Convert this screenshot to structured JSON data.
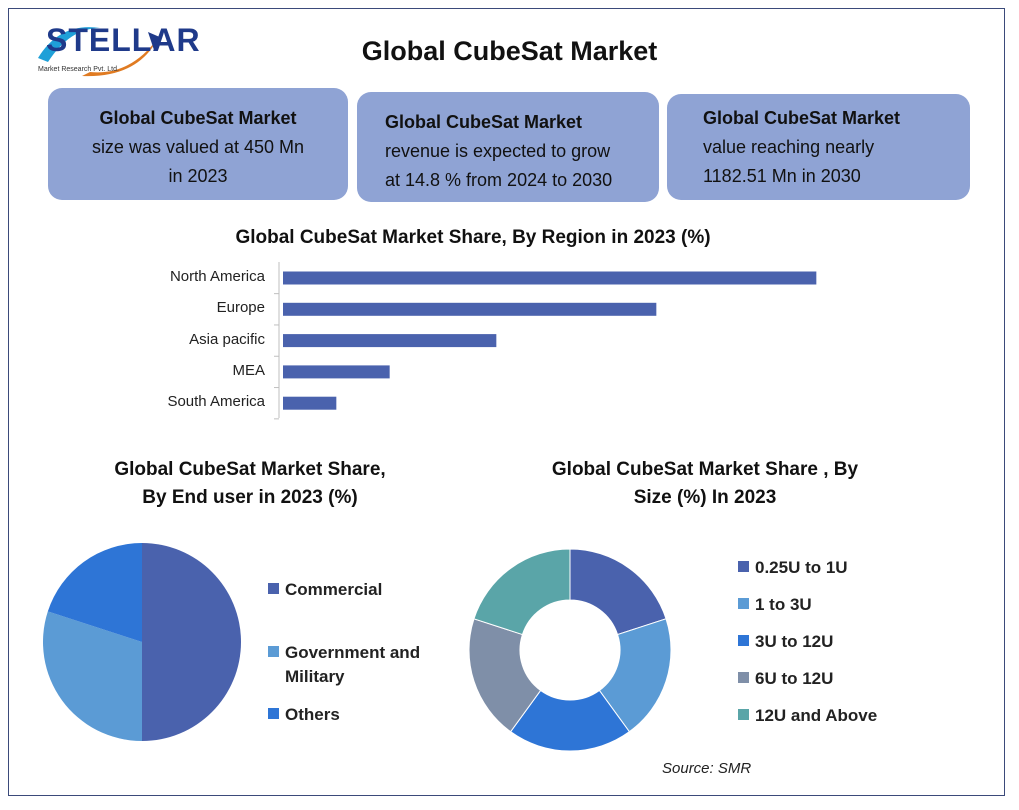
{
  "logo": {
    "name": "STELLAR",
    "subtitle": "Market Research Pvt. Ltd."
  },
  "title": "Global CubeSat Market",
  "cards": [
    {
      "bold": "Global CubeSat Market",
      "lines": [
        "size was valued at 450 Mn",
        "in 2023"
      ]
    },
    {
      "bold": "Global CubeSat Market",
      "lines": [
        "revenue is expected to grow",
        "at 14.8 % from 2024 to 2030"
      ]
    },
    {
      "bold": "Global CubeSat Market",
      "lines": [
        "value reaching nearly",
        "1182.51 Mn in 2030"
      ]
    }
  ],
  "colors": {
    "bar": "#4a62ad",
    "card": "#8fa3d4",
    "frame": "#3b4a7a"
  },
  "chart_data": [
    {
      "type": "bar",
      "orientation": "horizontal",
      "title": "Global CubeSat Market Share, By Region in 2023 (%)",
      "categories": [
        "North America",
        "Europe",
        "Asia pacific",
        "MEA",
        "South America"
      ],
      "values": [
        40,
        28,
        16,
        8,
        4
      ],
      "xlim": [
        0,
        42
      ],
      "grid": false
    },
    {
      "type": "pie",
      "title_lines": [
        "Global CubeSat Market Share,",
        "By End user in 2023 (%)"
      ],
      "labels": [
        "Commercial",
        "Government and Military",
        "Others"
      ],
      "label_lines": [
        [
          "Commercial"
        ],
        [
          "Government and",
          "Military"
        ],
        [
          "Others"
        ]
      ],
      "values": [
        50,
        30,
        20
      ],
      "colors": [
        "#4a62ad",
        "#5b9bd5",
        "#2e75d6"
      ],
      "legend": "right"
    },
    {
      "type": "pie",
      "donut": true,
      "title_lines": [
        "Global CubeSat Market Share , By",
        "Size (%) In 2023"
      ],
      "labels": [
        "0.25U to 1U",
        "1 to 3U",
        "3U to 12U",
        "6U to 12U",
        "12U and Above"
      ],
      "values": [
        20,
        20,
        20,
        20,
        20
      ],
      "colors": [
        "#4a62ad",
        "#5b9bd5",
        "#2e75d6",
        "#7f8fa8",
        "#5aa5a8"
      ],
      "legend": "right"
    }
  ],
  "source": "Source: SMR"
}
